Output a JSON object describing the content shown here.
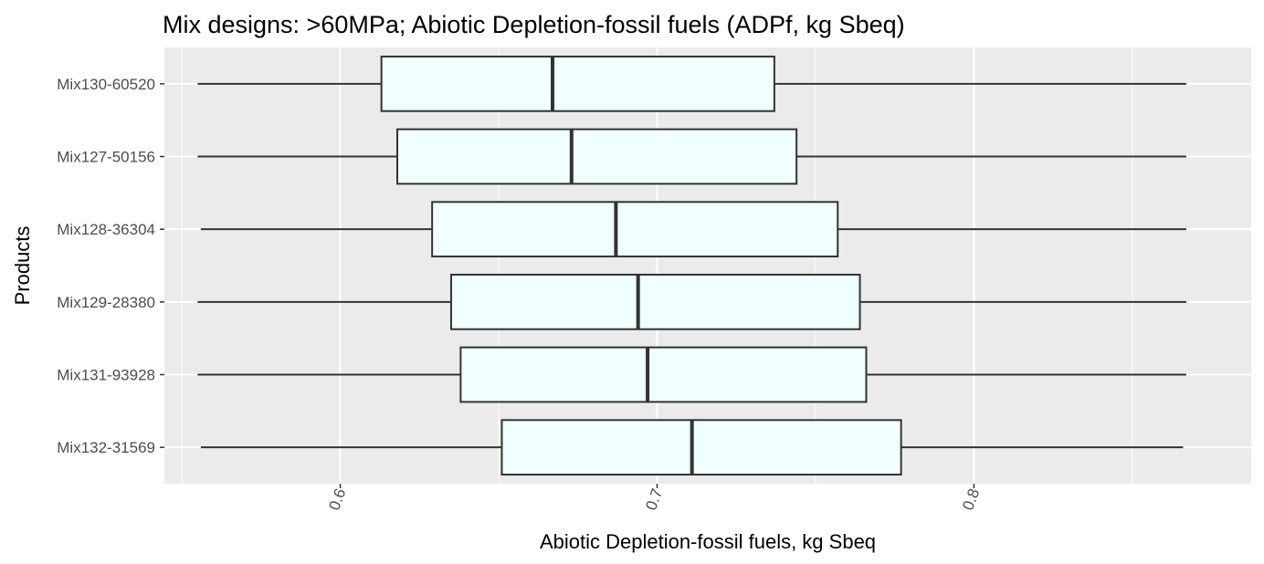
{
  "chart_data": {
    "type": "boxplot",
    "orientation": "horizontal",
    "title": "Mix designs: >60MPa; Abiotic Depletion-fossil fuels (ADPf, kg Sbeq)",
    "xlabel": "Abiotic Depletion-fossil fuels, kg Sbeq",
    "ylabel": "Products",
    "xlim": [
      0.5445,
      0.8875
    ],
    "x_ticks": [
      "0.6",
      "0.7",
      "0.8"
    ],
    "x_tick_values": [
      0.6,
      0.7,
      0.8
    ],
    "x_minor_gridlines": [
      0.55,
      0.65,
      0.75,
      0.85
    ],
    "grid": true,
    "legend": "none",
    "colors": {
      "panel_background": "#ebebeb",
      "gridline": "#ffffff",
      "box_fill": "#f0ffff",
      "box_outline": "#333333",
      "tick_label": "#4d4d4d"
    },
    "categories": [
      "Mix132-31569",
      "Mix131-93928",
      "Mix129-28380",
      "Mix128-36304",
      "Mix127-50156",
      "Mix130-60520"
    ],
    "boxes": [
      {
        "label": "Mix132-31569",
        "min": 0.556,
        "q1": 0.651,
        "median": 0.711,
        "q3": 0.777,
        "max": 0.866
      },
      {
        "label": "Mix131-93928",
        "min": 0.555,
        "q1": 0.638,
        "median": 0.697,
        "q3": 0.766,
        "max": 0.867
      },
      {
        "label": "Mix129-28380",
        "min": 0.555,
        "q1": 0.635,
        "median": 0.694,
        "q3": 0.764,
        "max": 0.867
      },
      {
        "label": "Mix128-36304",
        "min": 0.556,
        "q1": 0.629,
        "median": 0.687,
        "q3": 0.757,
        "max": 0.867
      },
      {
        "label": "Mix127-50156",
        "min": 0.555,
        "q1": 0.618,
        "median": 0.673,
        "q3": 0.744,
        "max": 0.867
      },
      {
        "label": "Mix130-60520",
        "min": 0.555,
        "q1": 0.613,
        "median": 0.667,
        "q3": 0.737,
        "max": 0.867
      }
    ]
  }
}
